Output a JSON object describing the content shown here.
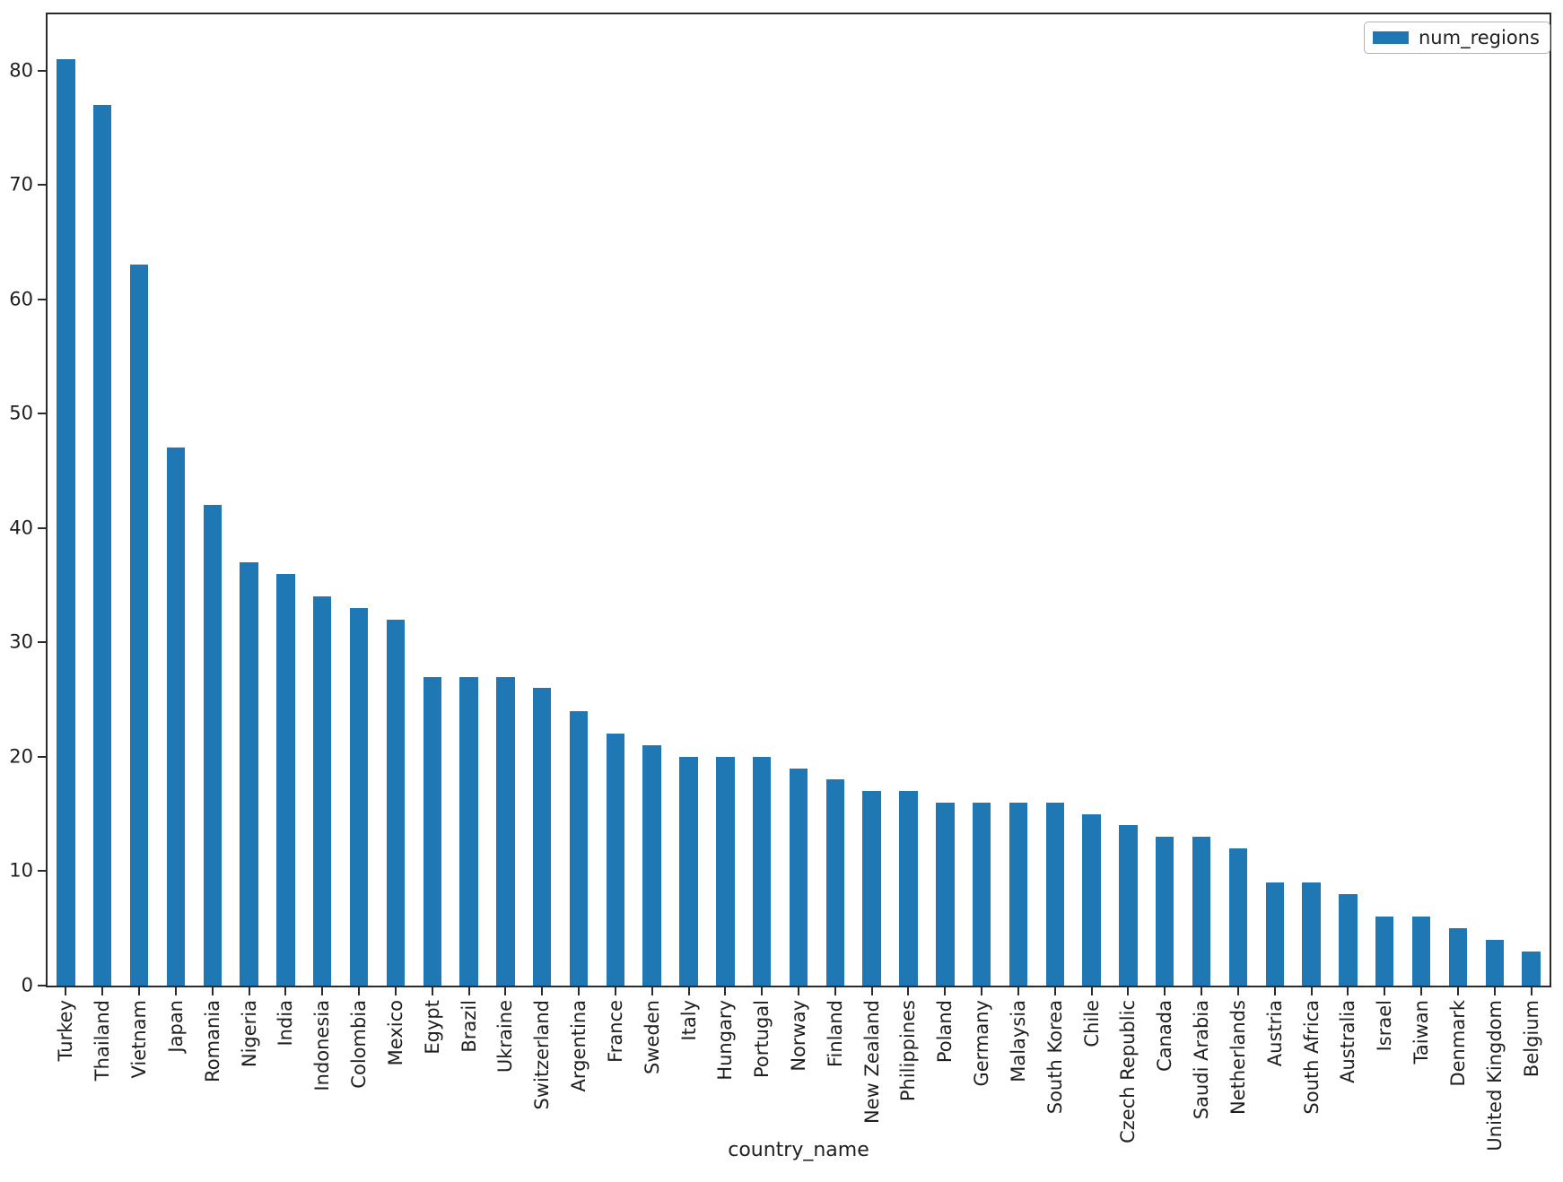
{
  "chart_data": {
    "type": "bar",
    "title": "",
    "xlabel": "country_name",
    "ylabel": "",
    "legend": {
      "position": "upper right",
      "entries": [
        "num_regions"
      ]
    },
    "categories": [
      "Turkey",
      "Thailand",
      "Vietnam",
      "Japan",
      "Romania",
      "Nigeria",
      "India",
      "Indonesia",
      "Colombia",
      "Mexico",
      "Egypt",
      "Brazil",
      "Ukraine",
      "Switzerland",
      "Argentina",
      "France",
      "Sweden",
      "Italy",
      "Hungary",
      "Portugal",
      "Norway",
      "Finland",
      "New Zealand",
      "Philippines",
      "Poland",
      "Germany",
      "Malaysia",
      "South Korea",
      "Chile",
      "Czech Republic",
      "Canada",
      "Saudi Arabia",
      "Netherlands",
      "Austria",
      "South Africa",
      "Australia",
      "Israel",
      "Taiwan",
      "Denmark",
      "United Kingdom",
      "Belgium"
    ],
    "series": [
      {
        "name": "num_regions",
        "values": [
          81,
          77,
          63,
          47,
          42,
          37,
          36,
          34,
          33,
          32,
          27,
          27,
          27,
          26,
          24,
          22,
          21,
          20,
          20,
          20,
          19,
          18,
          17,
          17,
          16,
          16,
          16,
          16,
          15,
          14,
          13,
          13,
          12,
          9,
          9,
          8,
          6,
          6,
          5,
          4,
          3
        ]
      }
    ],
    "ylim": [
      0,
      84.9
    ],
    "yticks": [
      0,
      10,
      20,
      30,
      40,
      50,
      60,
      70,
      80
    ],
    "bar_color": "#1f77b4",
    "bar_relative_width": 0.5,
    "grid": false,
    "x_tick_rotation": 90
  },
  "style": {
    "background": "#ffffff",
    "spine_color": "#2b2b2b",
    "text_color": "#1f1f1f",
    "legend_border": "#b3b3b3"
  }
}
